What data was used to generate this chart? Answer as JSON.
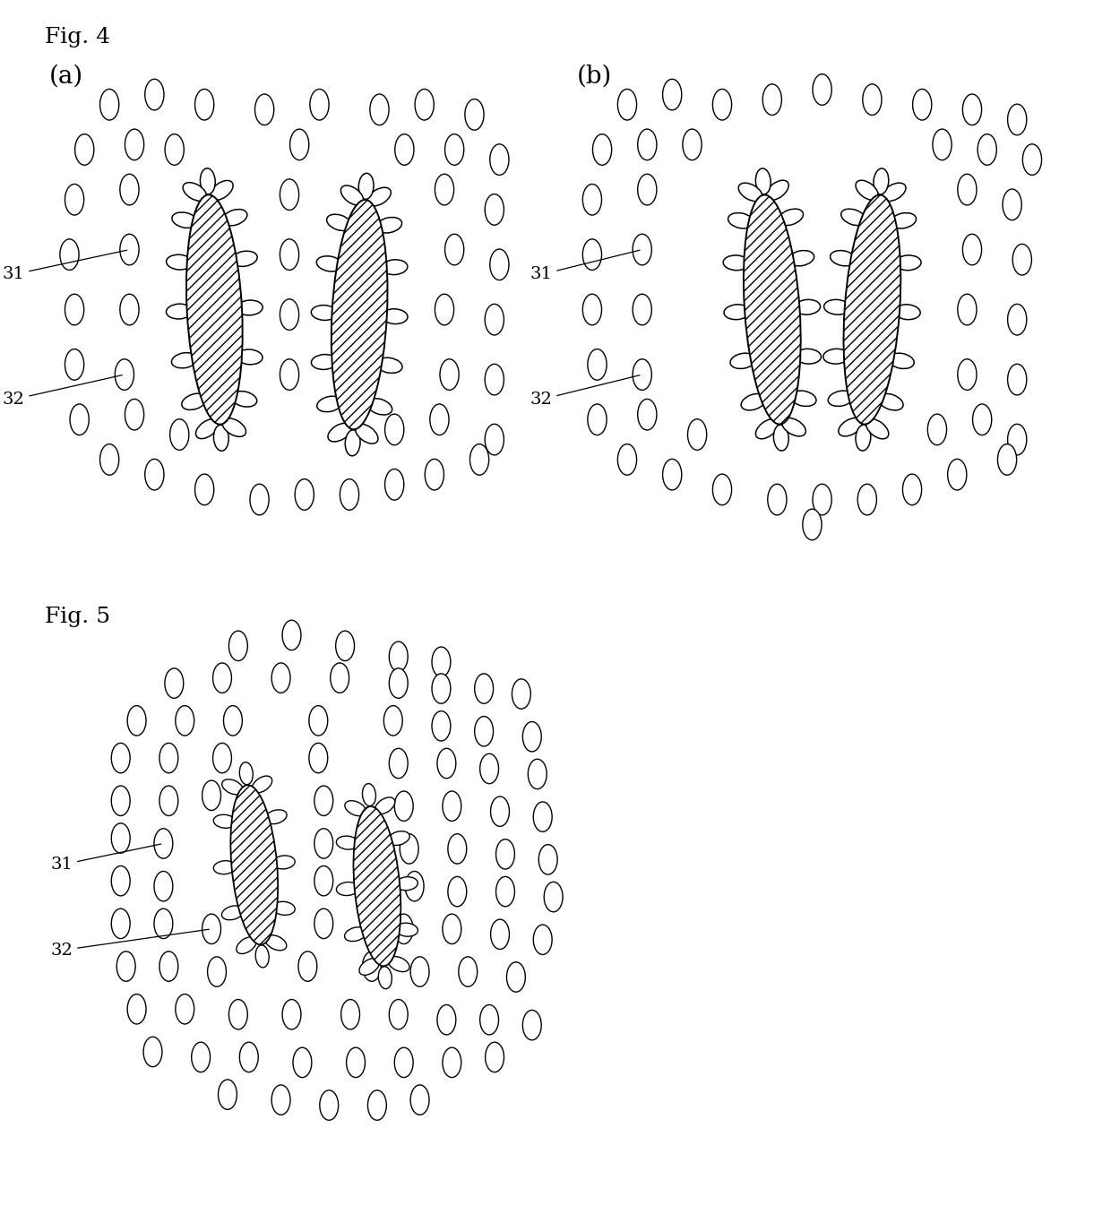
{
  "fig4_label": "Fig. 4",
  "fig5_label": "Fig. 5",
  "panel_a": "(a)",
  "panel_b": "(b)",
  "label_31": "31",
  "label_32": "32",
  "bg_color": "#ffffff"
}
